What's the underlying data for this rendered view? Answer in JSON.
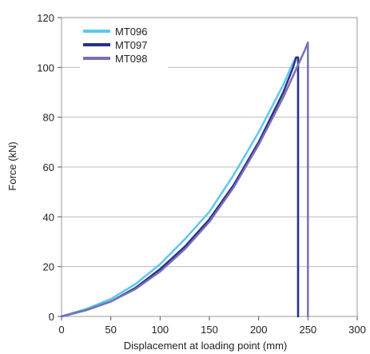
{
  "chart_data": {
    "type": "line",
    "xlabel": "Displacement at loading point (mm)",
    "ylabel": "Force (kN)",
    "xlim": [
      0,
      300
    ],
    "ylim": [
      0,
      120
    ],
    "xticks": [
      0,
      50,
      100,
      150,
      200,
      250,
      300
    ],
    "yticks": [
      0,
      20,
      40,
      60,
      80,
      100,
      120
    ],
    "grid": "horizontal",
    "legend_position": "top-left",
    "series": [
      {
        "name": "MT096",
        "color": "#5cc8ee",
        "x": [
          0,
          25,
          50,
          75,
          100,
          125,
          150,
          175,
          200,
          225,
          235,
          238,
          240,
          240
        ],
        "y": [
          0,
          3,
          7,
          13,
          21,
          31,
          42,
          57,
          74,
          93,
          102,
          104,
          104,
          0
        ]
      },
      {
        "name": "MT097",
        "color": "#2e2d8a",
        "x": [
          0,
          25,
          50,
          75,
          100,
          125,
          150,
          175,
          200,
          225,
          235,
          238,
          240,
          240
        ],
        "y": [
          0,
          2.5,
          6,
          11.5,
          19,
          28,
          39,
          53,
          70,
          90,
          100,
          104,
          104,
          0
        ]
      },
      {
        "name": "MT098",
        "color": "#7772b5",
        "x": [
          0,
          25,
          50,
          75,
          100,
          125,
          150,
          175,
          200,
          225,
          240,
          247,
          250,
          250
        ],
        "y": [
          0,
          2.5,
          6,
          11,
          18,
          27,
          38,
          52,
          69,
          88,
          101,
          107,
          110,
          0
        ]
      }
    ]
  }
}
